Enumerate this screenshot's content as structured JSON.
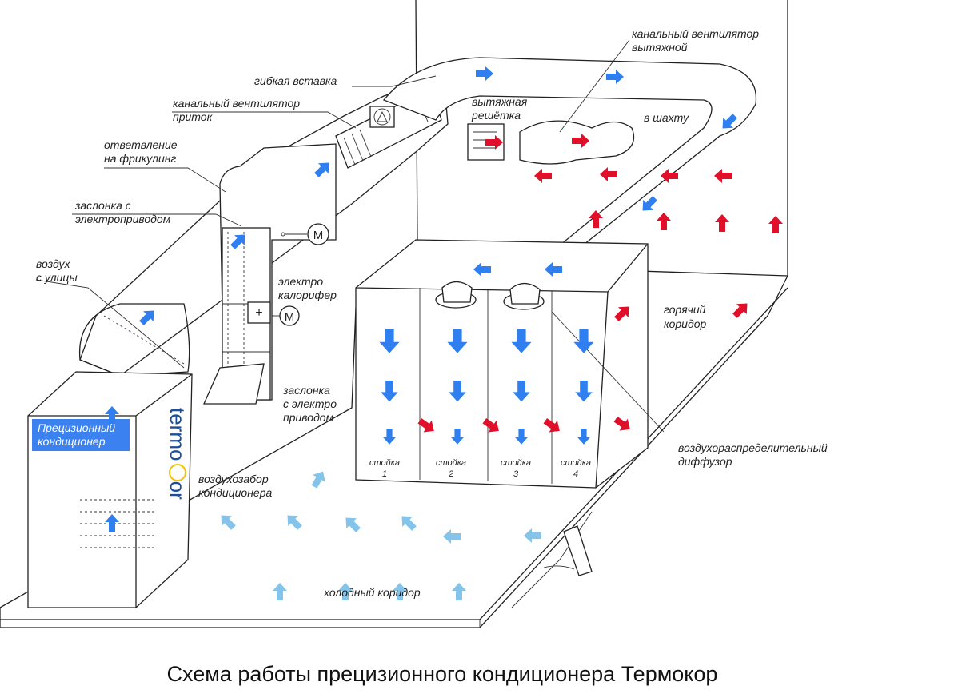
{
  "title": "Схема работы прецизионного кондиционера Термокор",
  "labels": {
    "exhaust_fan": [
      "канальный вентилятор",
      "вытяжной"
    ],
    "flex_insert": "гибкая вставка",
    "supply_fan": [
      "канальный вентилятор",
      "приток"
    ],
    "freecooling_branch": [
      "ответвление",
      "на фрикулинг"
    ],
    "damper_actuator": [
      "заслонка с",
      "электроприводом"
    ],
    "outside_air": [
      "воздух",
      "с улицы"
    ],
    "heater": [
      "электро",
      "калорифер"
    ],
    "exhaust_grille": [
      "вытяжная",
      "решётка"
    ],
    "to_shaft": "в шахту",
    "hot_corridor": [
      "горячий",
      "коридор"
    ],
    "damper2": [
      "заслонка",
      "с электро",
      "приводом"
    ],
    "air_intake": [
      "воздухозабор",
      "кондиционера"
    ],
    "cold_corridor": "холодный коридор",
    "diffuser": [
      "воздухораспределительный",
      "диффузор"
    ],
    "motor": "M",
    "ac_unit": [
      "Прецизионный",
      "кондиционер"
    ],
    "brand": "termo or"
  },
  "racks": [
    {
      "label": "стойка",
      "number": "1"
    },
    {
      "label": "стойка",
      "number": "2"
    },
    {
      "label": "стойка",
      "number": "3"
    },
    {
      "label": "стойка",
      "number": "4"
    }
  ],
  "colors": {
    "supply_arrow": "#2f7ff0",
    "hot_arrow": "#e0102a",
    "cold_arrow": "#84c3ea",
    "ac_label_bg": "#3b82f0"
  }
}
